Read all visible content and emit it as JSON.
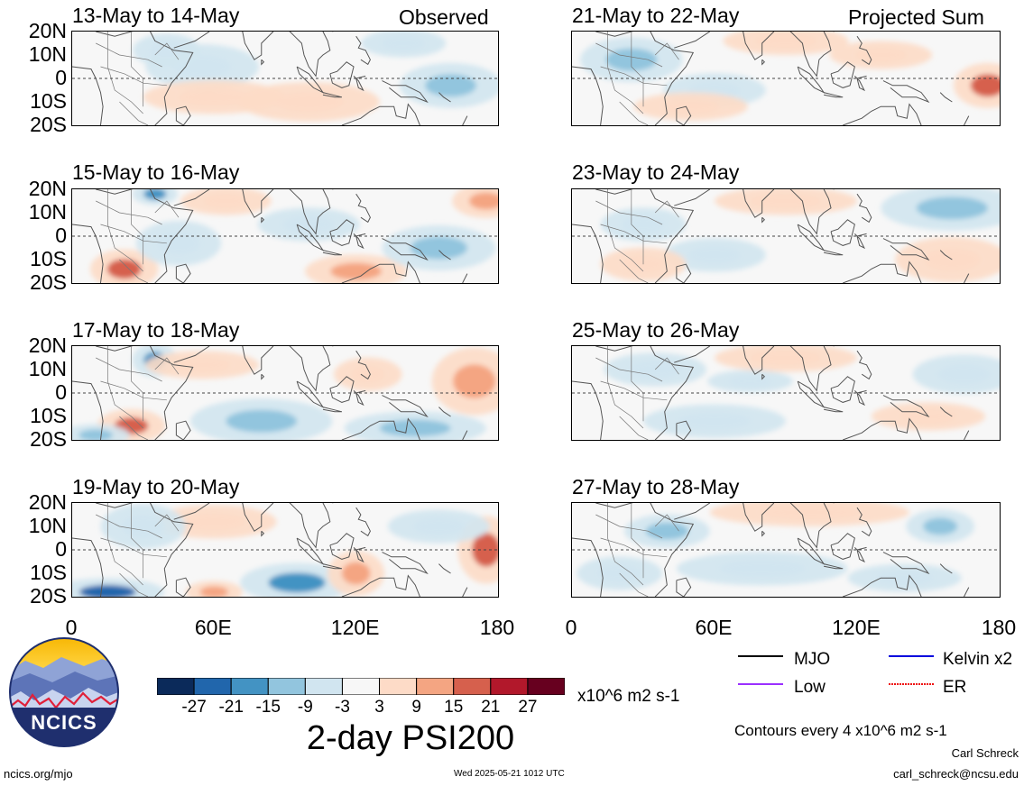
{
  "colors": {
    "scale": [
      "#0b2a5a",
      "#2166ac",
      "#4393c3",
      "#92c5de",
      "#d1e5f0",
      "#f7f7f7",
      "#fddbc7",
      "#f4a582",
      "#d6604d",
      "#b2182b",
      "#67001f"
    ],
    "mjo": "#000000",
    "low": "#9b30ff",
    "kelvin": "#0000dd",
    "er": "#ee1111",
    "map_lines": "#555555"
  },
  "chart_data": {
    "type": "heatmap",
    "title": "2-day PSI200",
    "units": "x10^6 m2 s-1",
    "contour_note": "Contours every 4 x10^6 m2 s-1",
    "lat_ticks": [
      "20N",
      "10N",
      "0",
      "10S",
      "20S"
    ],
    "lon_ticks": [
      "0",
      "60E",
      "120E",
      "180"
    ],
    "lat_range": [
      -20,
      20
    ],
    "lon_range": [
      0,
      180
    ],
    "colorbar": {
      "levels": [
        "-27",
        "-21",
        "-15",
        "-9",
        "-3",
        "3",
        "9",
        "15",
        "21",
        "27"
      ]
    },
    "legend": [
      {
        "label": "MJO",
        "icon": "black-line"
      },
      {
        "label": "Kelvin x2",
        "icon": "blue-line"
      },
      {
        "label": "Low",
        "icon": "purple-line"
      },
      {
        "label": "ER",
        "icon": "red-dashed-line"
      }
    ],
    "columns": [
      {
        "label": "Observed",
        "panels": [
          {
            "title": "13-May to 14-May",
            "anomalies": [
              {
                "lon": 55,
                "lat": 5,
                "v": -6,
                "rx": 20,
                "ry": 8
              },
              {
                "lon": 160,
                "lat": -3,
                "v": -10,
                "rx": 18,
                "ry": 8
              },
              {
                "lon": 40,
                "lat": 12,
                "v": -4,
                "rx": 12,
                "ry": 6
              },
              {
                "lon": 60,
                "lat": -8,
                "v": 5,
                "rx": 25,
                "ry": 6
              },
              {
                "lon": 100,
                "lat": -10,
                "v": 4,
                "rx": 25,
                "ry": 7
              },
              {
                "lon": 140,
                "lat": 15,
                "v": -4,
                "rx": 15,
                "ry": 5
              }
            ]
          },
          {
            "title": "15-May to 16-May",
            "anomalies": [
              {
                "lon": 65,
                "lat": 15,
                "v": 9,
                "rx": 16,
                "ry": 5
              },
              {
                "lon": 22,
                "lat": -14,
                "v": 21,
                "rx": 12,
                "ry": 7
              },
              {
                "lon": 35,
                "lat": 18,
                "v": -15,
                "rx": 8,
                "ry": 4
              },
              {
                "lon": 175,
                "lat": 15,
                "v": 12,
                "rx": 12,
                "ry": 6
              },
              {
                "lon": 120,
                "lat": -15,
                "v": 10,
                "rx": 18,
                "ry": 6
              },
              {
                "lon": 155,
                "lat": -5,
                "v": -10,
                "rx": 20,
                "ry": 8
              },
              {
                "lon": 100,
                "lat": 5,
                "v": -5,
                "rx": 18,
                "ry": 6
              },
              {
                "lon": 45,
                "lat": -3,
                "v": -6,
                "rx": 15,
                "ry": 8
              }
            ]
          },
          {
            "title": "17-May to 18-May",
            "anomalies": [
              {
                "lon": 35,
                "lat": 14,
                "v": -16,
                "rx": 8,
                "ry": 6
              },
              {
                "lon": 25,
                "lat": -14,
                "v": 20,
                "rx": 12,
                "ry": 6
              },
              {
                "lon": 55,
                "lat": 12,
                "v": 6,
                "rx": 20,
                "ry": 5
              },
              {
                "lon": 170,
                "lat": 5,
                "v": 10,
                "rx": 15,
                "ry": 12
              },
              {
                "lon": 80,
                "lat": -12,
                "v": -12,
                "rx": 25,
                "ry": 8
              },
              {
                "lon": 145,
                "lat": -15,
                "v": -10,
                "rx": 25,
                "ry": 6
              },
              {
                "lon": 125,
                "lat": 8,
                "v": 5,
                "rx": 12,
                "ry": 6
              },
              {
                "lon": 10,
                "lat": -18,
                "v": -12,
                "rx": 12,
                "ry": 4
              }
            ]
          },
          {
            "title": "19-May to 20-May",
            "anomalies": [
              {
                "lon": 15,
                "lat": -18,
                "v": -24,
                "rx": 20,
                "ry": 5
              },
              {
                "lon": 95,
                "lat": -14,
                "v": -18,
                "rx": 20,
                "ry": 7
              },
              {
                "lon": 60,
                "lat": -18,
                "v": 14,
                "rx": 10,
                "ry": 4
              },
              {
                "lon": 175,
                "lat": 0,
                "v": 18,
                "rx": 10,
                "ry": 12
              },
              {
                "lon": 60,
                "lat": 12,
                "v": 9,
                "rx": 22,
                "ry": 6
              },
              {
                "lon": 155,
                "lat": 10,
                "v": -8,
                "rx": 18,
                "ry": 6
              },
              {
                "lon": 120,
                "lat": -10,
                "v": 10,
                "rx": 10,
                "ry": 8
              },
              {
                "lon": 30,
                "lat": 10,
                "v": -6,
                "rx": 15,
                "ry": 8
              }
            ]
          }
        ]
      },
      {
        "label": "Projected Sum",
        "panels": [
          {
            "title": "21-May to 22-May",
            "anomalies": [
              {
                "lon": 25,
                "lat": 8,
                "v": -12,
                "rx": 18,
                "ry": 8
              },
              {
                "lon": 90,
                "lat": 16,
                "v": 9,
                "rx": 22,
                "ry": 5
              },
              {
                "lon": 175,
                "lat": -3,
                "v": 16,
                "rx": 12,
                "ry": 8
              },
              {
                "lon": 60,
                "lat": -5,
                "v": -6,
                "rx": 18,
                "ry": 6
              },
              {
                "lon": 50,
                "lat": -12,
                "v": 4,
                "rx": 20,
                "ry": 5
              },
              {
                "lon": 130,
                "lat": 10,
                "v": 4,
                "rx": 18,
                "ry": 5
              }
            ]
          },
          {
            "title": "23-May to 24-May",
            "anomalies": [
              {
                "lon": 160,
                "lat": 12,
                "v": -10,
                "rx": 25,
                "ry": 8
              },
              {
                "lon": 160,
                "lat": -10,
                "v": 9,
                "rx": 20,
                "ry": 8
              },
              {
                "lon": 90,
                "lat": 15,
                "v": 8,
                "rx": 25,
                "ry": 5
              },
              {
                "lon": 60,
                "lat": -8,
                "v": -6,
                "rx": 18,
                "ry": 6
              },
              {
                "lon": 30,
                "lat": -12,
                "v": 5,
                "rx": 15,
                "ry": 6
              },
              {
                "lon": 30,
                "lat": 5,
                "v": -4,
                "rx": 15,
                "ry": 6
              }
            ]
          },
          {
            "title": "25-May to 26-May",
            "anomalies": [
              {
                "lon": 90,
                "lat": 15,
                "v": 6,
                "rx": 25,
                "ry": 5
              },
              {
                "lon": 165,
                "lat": 8,
                "v": -8,
                "rx": 18,
                "ry": 7
              },
              {
                "lon": 35,
                "lat": 10,
                "v": -5,
                "rx": 18,
                "ry": 6
              },
              {
                "lon": 60,
                "lat": -12,
                "v": -4,
                "rx": 25,
                "ry": 6
              },
              {
                "lon": 150,
                "lat": -10,
                "v": 4,
                "rx": 20,
                "ry": 5
              },
              {
                "lon": 75,
                "lat": 5,
                "v": -4,
                "rx": 15,
                "ry": 4
              }
            ]
          },
          {
            "title": "27-May to 28-May",
            "anomalies": [
              {
                "lon": 100,
                "lat": 16,
                "v": 8,
                "rx": 35,
                "ry": 5
              },
              {
                "lon": 155,
                "lat": 10,
                "v": -12,
                "rx": 12,
                "ry": 6
              },
              {
                "lon": 40,
                "lat": 8,
                "v": -9,
                "rx": 15,
                "ry": 6
              },
              {
                "lon": 80,
                "lat": -8,
                "v": -5,
                "rx": 30,
                "ry": 6
              },
              {
                "lon": 140,
                "lat": -12,
                "v": -5,
                "rx": 20,
                "ry": 5
              },
              {
                "lon": 20,
                "lat": -10,
                "v": -4,
                "rx": 15,
                "ry": 6
              }
            ]
          }
        ]
      }
    ]
  },
  "branding": {
    "logo_text": "NCICS",
    "url": "ncics.org/mjo",
    "timestamp": "Wed 2025-05-21 1012 UTC",
    "author": "Carl Schreck",
    "email": "carl_schreck@ncsu.edu"
  }
}
